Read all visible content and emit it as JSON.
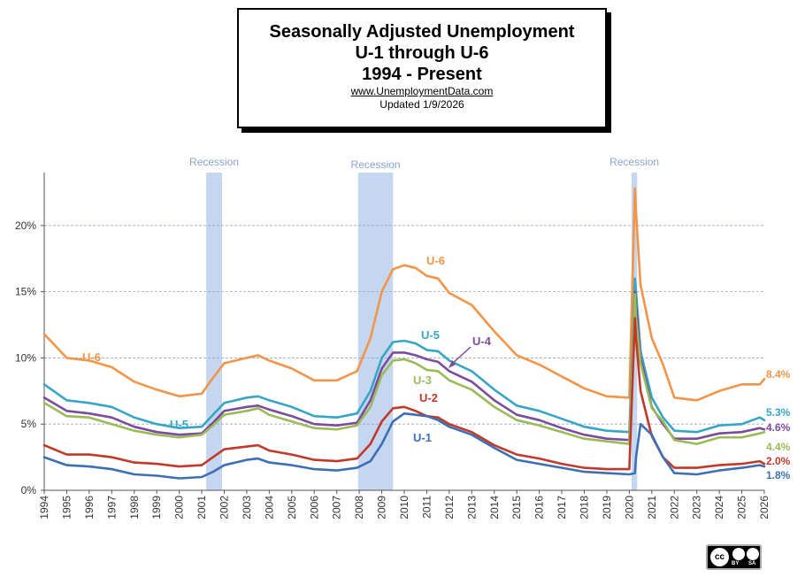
{
  "header": {
    "line1": "Seasonally Adjusted Unemployment",
    "line2": "U-1 through U-6",
    "line3": "1994 - Present",
    "url": "www.UnemploymentData.com",
    "updated": "Updated  1/9/2026"
  },
  "badge": {
    "label": "cc",
    "by": "BY",
    "sa": "SA"
  },
  "chart_data": {
    "type": "line",
    "title": "Seasonally Adjusted Unemployment U-1 through U-6 1994 - Present",
    "xlabel": "",
    "ylabel": "",
    "xlim": [
      1994,
      2026
    ],
    "ylim": [
      0,
      24
    ],
    "y_ticks": [
      0,
      5,
      10,
      15,
      20
    ],
    "y_tick_labels": [
      "0%",
      "5%",
      "10%",
      "15%",
      "20%"
    ],
    "x_ticks": [
      1994,
      1995,
      1996,
      1997,
      1998,
      1999,
      2000,
      2001,
      2002,
      2003,
      2004,
      2005,
      2006,
      2007,
      2008,
      2009,
      2010,
      2011,
      2012,
      2013,
      2014,
      2015,
      2016,
      2017,
      2018,
      2019,
      2020,
      2021,
      2022,
      2023,
      2024,
      2025,
      2026
    ],
    "grid": "horizontal dashed",
    "recessions": [
      {
        "label": "Recession",
        "start": 2001.2,
        "end": 2001.9
      },
      {
        "label": "Recession",
        "start": 2007.95,
        "end": 2009.5
      },
      {
        "label": "Recession",
        "start": 2020.1,
        "end": 2020.35
      }
    ],
    "series": [
      {
        "name": "U-6",
        "color": "#f39447",
        "end_label": "8.4%",
        "x": [
          1994.0,
          1995.0,
          1996.0,
          1997.0,
          1998.0,
          1999.0,
          2000.0,
          2001.0,
          2001.5,
          2002.0,
          2003.0,
          2003.5,
          2004.0,
          2005.0,
          2006.0,
          2007.0,
          2007.9,
          2008.5,
          2009.0,
          2009.5,
          2010.0,
          2010.5,
          2011.0,
          2011.5,
          2012.0,
          2013.0,
          2014.0,
          2015.0,
          2016.0,
          2017.0,
          2018.0,
          2019.0,
          2020.0,
          2020.25,
          2020.3,
          2020.5,
          2021.0,
          2021.5,
          2022.0,
          2023.0,
          2024.0,
          2025.0,
          2025.8,
          2026.0
        ],
        "y": [
          11.8,
          10.0,
          9.8,
          9.3,
          8.2,
          7.6,
          7.1,
          7.3,
          8.5,
          9.6,
          10.0,
          10.2,
          9.8,
          9.2,
          8.3,
          8.3,
          9.0,
          11.5,
          15.0,
          16.7,
          17.0,
          16.8,
          16.2,
          16.0,
          14.9,
          14.0,
          12.0,
          10.2,
          9.5,
          8.6,
          7.7,
          7.1,
          7.0,
          22.8,
          21.0,
          15.5,
          11.5,
          9.5,
          7.0,
          6.8,
          7.5,
          8.0,
          8.0,
          8.4
        ]
      },
      {
        "name": "U-5",
        "color": "#37a6c4",
        "end_label": "5.3%",
        "x": [
          1994.0,
          1995.0,
          1996.0,
          1997.0,
          1998.0,
          1999.0,
          2000.0,
          2001.0,
          2001.5,
          2002.0,
          2003.0,
          2003.5,
          2004.0,
          2005.0,
          2006.0,
          2007.0,
          2007.9,
          2008.5,
          2009.0,
          2009.5,
          2010.0,
          2010.5,
          2011.0,
          2011.5,
          2012.0,
          2013.0,
          2014.0,
          2015.0,
          2016.0,
          2017.0,
          2018.0,
          2019.0,
          2020.0,
          2020.25,
          2020.3,
          2020.5,
          2021.0,
          2021.5,
          2022.0,
          2023.0,
          2024.0,
          2025.0,
          2025.8,
          2026.0
        ],
        "y": [
          8.0,
          6.8,
          6.6,
          6.3,
          5.5,
          5.0,
          4.7,
          4.8,
          5.7,
          6.6,
          7.0,
          7.1,
          6.8,
          6.3,
          5.6,
          5.5,
          5.8,
          7.5,
          10.0,
          11.2,
          11.3,
          11.1,
          10.6,
          10.5,
          9.8,
          9.0,
          7.6,
          6.4,
          6.0,
          5.4,
          4.8,
          4.5,
          4.4,
          16.0,
          15.0,
          10.5,
          7.0,
          5.5,
          4.5,
          4.4,
          4.9,
          5.0,
          5.5,
          5.3
        ]
      },
      {
        "name": "U-4",
        "color": "#7c4c9c",
        "end_label": "4.6%",
        "x": [
          1994.0,
          1995.0,
          1996.0,
          1997.0,
          1998.0,
          1999.0,
          2000.0,
          2001.0,
          2001.5,
          2002.0,
          2003.0,
          2003.5,
          2004.0,
          2005.0,
          2006.0,
          2007.0,
          2007.9,
          2008.5,
          2009.0,
          2009.5,
          2010.0,
          2010.5,
          2011.0,
          2011.5,
          2012.0,
          2013.0,
          2014.0,
          2015.0,
          2016.0,
          2017.0,
          2018.0,
          2019.0,
          2020.0,
          2020.25,
          2020.3,
          2020.5,
          2021.0,
          2021.5,
          2022.0,
          2023.0,
          2024.0,
          2025.0,
          2025.8,
          2026.0
        ],
        "y": [
          7.0,
          6.0,
          5.8,
          5.5,
          4.8,
          4.4,
          4.2,
          4.3,
          5.1,
          6.0,
          6.3,
          6.4,
          6.1,
          5.6,
          5.0,
          4.9,
          5.1,
          6.8,
          9.2,
          10.4,
          10.4,
          10.2,
          9.9,
          9.7,
          9.0,
          8.2,
          6.8,
          5.7,
          5.3,
          4.7,
          4.2,
          3.9,
          3.8,
          15.0,
          14.0,
          10.0,
          6.3,
          5.0,
          3.9,
          3.9,
          4.3,
          4.4,
          4.7,
          4.6
        ]
      },
      {
        "name": "U-3",
        "color": "#9bbb59",
        "end_label": "4.4%",
        "x": [
          1994.0,
          1995.0,
          1996.0,
          1997.0,
          1998.0,
          1999.0,
          2000.0,
          2001.0,
          2001.5,
          2002.0,
          2003.0,
          2003.5,
          2004.0,
          2005.0,
          2006.0,
          2007.0,
          2007.9,
          2008.5,
          2009.0,
          2009.5,
          2010.0,
          2010.5,
          2011.0,
          2011.5,
          2012.0,
          2013.0,
          2014.0,
          2015.0,
          2016.0,
          2017.0,
          2018.0,
          2019.0,
          2020.0,
          2020.25,
          2020.3,
          2020.5,
          2021.0,
          2021.5,
          2022.0,
          2023.0,
          2024.0,
          2025.0,
          2025.8,
          2026.0
        ],
        "y": [
          6.6,
          5.6,
          5.5,
          5.0,
          4.5,
          4.2,
          4.0,
          4.2,
          4.9,
          5.7,
          6.0,
          6.2,
          5.7,
          5.2,
          4.7,
          4.6,
          4.9,
          6.3,
          8.7,
          9.8,
          9.9,
          9.6,
          9.1,
          9.0,
          8.3,
          7.6,
          6.3,
          5.3,
          4.9,
          4.4,
          3.9,
          3.7,
          3.5,
          14.8,
          13.0,
          9.6,
          6.2,
          5.2,
          3.8,
          3.5,
          4.0,
          4.0,
          4.3,
          4.4
        ]
      },
      {
        "name": "U-2",
        "color": "#c0392b",
        "end_label": "2.0%",
        "x": [
          1994.0,
          1995.0,
          1996.0,
          1997.0,
          1998.0,
          1999.0,
          2000.0,
          2001.0,
          2001.5,
          2002.0,
          2003.0,
          2003.5,
          2004.0,
          2005.0,
          2006.0,
          2007.0,
          2007.9,
          2008.5,
          2009.0,
          2009.5,
          2010.0,
          2010.5,
          2011.0,
          2011.5,
          2012.0,
          2013.0,
          2014.0,
          2015.0,
          2016.0,
          2017.0,
          2018.0,
          2019.0,
          2020.0,
          2020.25,
          2020.3,
          2020.5,
          2021.0,
          2021.5,
          2022.0,
          2023.0,
          2024.0,
          2025.0,
          2025.8,
          2026.0
        ],
        "y": [
          3.4,
          2.7,
          2.7,
          2.5,
          2.1,
          2.0,
          1.8,
          1.9,
          2.5,
          3.1,
          3.3,
          3.4,
          3.0,
          2.7,
          2.3,
          2.2,
          2.4,
          3.5,
          5.2,
          6.2,
          6.3,
          6.0,
          5.6,
          5.5,
          5.0,
          4.4,
          3.4,
          2.7,
          2.4,
          2.0,
          1.7,
          1.6,
          1.6,
          13.0,
          11.5,
          7.5,
          4.1,
          2.5,
          1.7,
          1.7,
          1.9,
          2.0,
          2.2,
          2.0
        ]
      },
      {
        "name": "U-1",
        "color": "#3c6fb4",
        "end_label": "1.8%",
        "x": [
          1994.0,
          1995.0,
          1996.0,
          1997.0,
          1998.0,
          1999.0,
          2000.0,
          2001.0,
          2001.5,
          2002.0,
          2003.0,
          2003.5,
          2004.0,
          2005.0,
          2006.0,
          2007.0,
          2007.9,
          2008.5,
          2009.0,
          2009.5,
          2010.0,
          2010.5,
          2011.0,
          2011.5,
          2012.0,
          2013.0,
          2014.0,
          2015.0,
          2016.0,
          2017.0,
          2018.0,
          2019.0,
          2020.0,
          2020.25,
          2020.3,
          2020.5,
          2021.0,
          2021.5,
          2022.0,
          2023.0,
          2024.0,
          2025.0,
          2025.8,
          2026.0
        ],
        "y": [
          2.5,
          1.9,
          1.8,
          1.6,
          1.2,
          1.1,
          0.9,
          1.0,
          1.4,
          1.9,
          2.3,
          2.4,
          2.1,
          1.9,
          1.6,
          1.5,
          1.7,
          2.2,
          3.5,
          5.2,
          5.8,
          5.7,
          5.6,
          5.3,
          4.8,
          4.2,
          3.2,
          2.3,
          2.0,
          1.7,
          1.4,
          1.3,
          1.2,
          1.3,
          2.5,
          5.0,
          4.2,
          2.5,
          1.3,
          1.2,
          1.5,
          1.7,
          1.9,
          1.8
        ]
      }
    ]
  }
}
